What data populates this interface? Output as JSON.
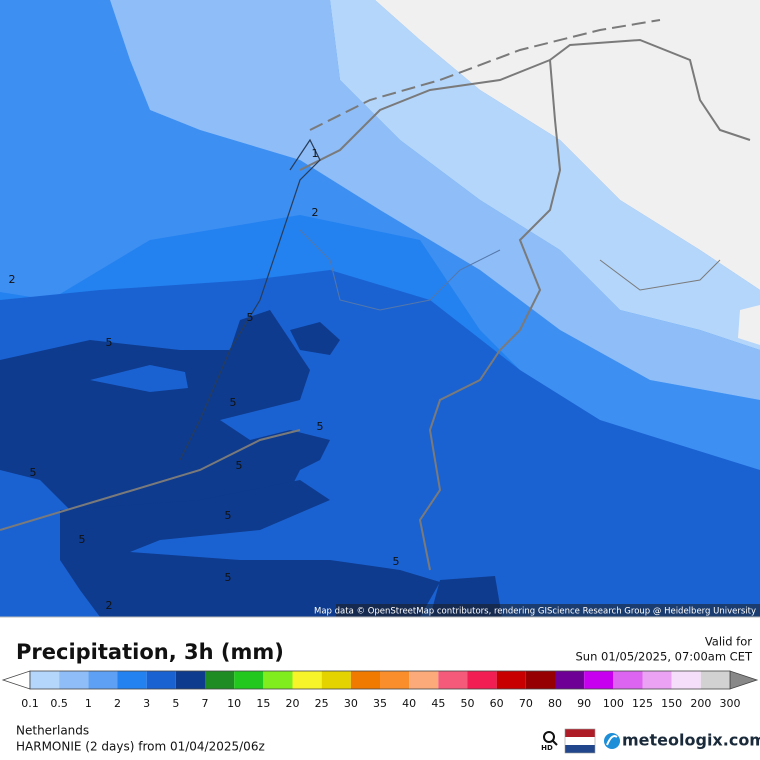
{
  "map": {
    "attribution": "Map data © OpenStreetMap contributors, rendering GIScience Research Group @ Heidelberg University",
    "contour_labels": [
      "1",
      "2",
      "2",
      "5",
      "5",
      "5",
      "5",
      "5",
      "5",
      "5",
      "5",
      "5",
      "5",
      "2"
    ]
  },
  "header": {
    "title": "Precipitation, 3h (mm)",
    "valid_label": "Valid for",
    "valid_time": "Sun 01/05/2025, 07:00am CET"
  },
  "legend": {
    "labels": [
      "0.1",
      "0.5",
      "1",
      "2",
      "3",
      "5",
      "7",
      "10",
      "15",
      "20",
      "25",
      "30",
      "35",
      "40",
      "45",
      "50",
      "60",
      "70",
      "80",
      "90",
      "100",
      "125",
      "150",
      "200",
      "300"
    ],
    "colors": [
      "#b4d6fb",
      "#8ebdf7",
      "#5ea1f4",
      "#2382f0",
      "#1a62d2",
      "#0e3b8e",
      "#1e8c22",
      "#22c81e",
      "#80ee1e",
      "#f7f52a",
      "#e5d300",
      "#f07a00",
      "#fa8e2a",
      "#fcaa7a",
      "#f55a7a",
      "#f01e52",
      "#c80000",
      "#960000",
      "#6e0096",
      "#c800f0",
      "#dc64f0",
      "#eba2f5",
      "#f5defa",
      "#d2d2d2"
    ]
  },
  "footer": {
    "region": "Netherlands",
    "model": "HARMONIE (2 days) from  01/04/2025/06z",
    "hd": "HD",
    "brand": "meteologix.com"
  }
}
